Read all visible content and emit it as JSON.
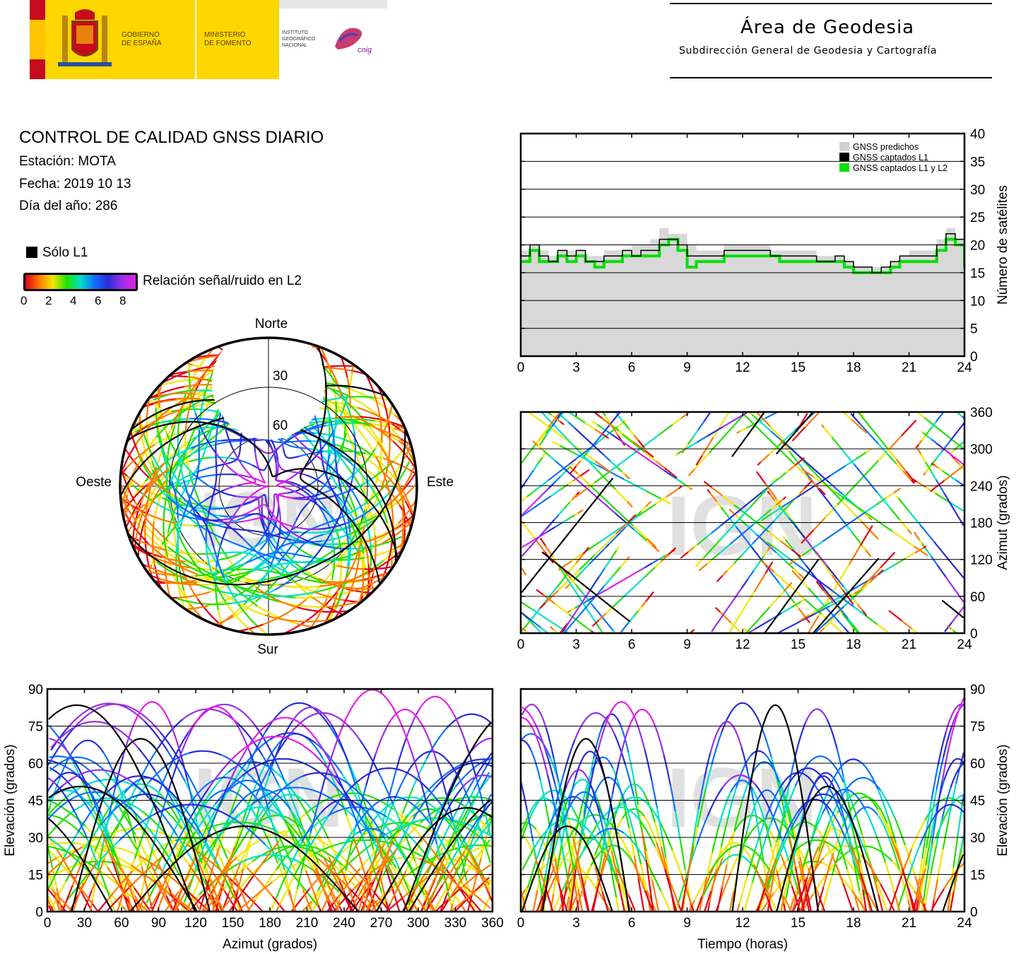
{
  "header": {
    "gov_line1": "GOBIERNO",
    "gov_line2": "DE ESPAÑA",
    "min_line1": "MINISTERIO",
    "min_line2": "DE FOMENTO",
    "ign_line1": "INSTITUTO",
    "ign_line2": "GEOGRÁFICO",
    "ign_line3": "NACIONAL",
    "cnig": "cnig",
    "area_title": "Área de Geodesia",
    "area_sub": "Subdirección General de Geodesia y Cartografía"
  },
  "info": {
    "title": "CONTROL DE CALIDAD GNSS DIARIO",
    "station": "Estación: MOTA",
    "date": "Fecha: 2019 10 13",
    "doy": "Día del año: 286"
  },
  "legend": {
    "l1_only": "Sólo L1",
    "snr_label": "Relación señal/ruido en L2",
    "snr_ticks": [
      "0",
      "2",
      "4",
      "6",
      "8"
    ],
    "colors": [
      "#000000",
      "#e0001a",
      "#ff7a00",
      "#f2e600",
      "#22e000",
      "#00e0c8",
      "#1070ff",
      "#2b2bd9",
      "#9a30e8",
      "#e620e6"
    ]
  },
  "watermark": "IGN",
  "chart_data": [
    {
      "type": "area",
      "id": "satellite-count",
      "x_ticks": [
        "0",
        "3",
        "6",
        "9",
        "12",
        "15",
        "18",
        "21",
        "24"
      ],
      "y_ticks": [
        "0",
        "5",
        "10",
        "15",
        "20",
        "25",
        "30",
        "35",
        "40"
      ],
      "xlim": [
        0,
        24
      ],
      "ylim": [
        0,
        40
      ],
      "ylabel": "Número de satélites",
      "legend_position": "top-right",
      "grid": true,
      "x": [
        0,
        0.5,
        1,
        1.5,
        2,
        2.5,
        3,
        3.5,
        4,
        4.5,
        5,
        5.5,
        6,
        6.5,
        7,
        7.5,
        8,
        8.5,
        9,
        9.5,
        10,
        10.5,
        11,
        11.5,
        12,
        12.5,
        13,
        13.5,
        14,
        14.5,
        15,
        15.5,
        16,
        16.5,
        17,
        17.5,
        18,
        18.5,
        19,
        19.5,
        20,
        20.5,
        21,
        21.5,
        22,
        22.5,
        23,
        23.5,
        24
      ],
      "series": [
        {
          "name": "GNSS predichos",
          "values": [
            19,
            20,
            19,
            18,
            19,
            19,
            19,
            18,
            18,
            19,
            19,
            19,
            20,
            20,
            21,
            23,
            22,
            22,
            20,
            19,
            19,
            19,
            20,
            20,
            20,
            20,
            20,
            19,
            19,
            19,
            19,
            19,
            18,
            18,
            18,
            17,
            16,
            16,
            16,
            16,
            17,
            18,
            19,
            19,
            19,
            21,
            23,
            21,
            18
          ]
        },
        {
          "name": "GNSS captados L1",
          "values": [
            18,
            20,
            18,
            17,
            19,
            18,
            19,
            17,
            17,
            18,
            18,
            19,
            18,
            19,
            19,
            21,
            21,
            20,
            18,
            18,
            18,
            18,
            19,
            19,
            19,
            19,
            19,
            18,
            18,
            18,
            18,
            18,
            17,
            17,
            18,
            17,
            16,
            16,
            15,
            16,
            17,
            18,
            18,
            18,
            18,
            20,
            22,
            21,
            17
          ]
        },
        {
          "name": "GNSS captados L1 y L2",
          "values": [
            17,
            19,
            17,
            17,
            18,
            17,
            18,
            17,
            16,
            17,
            17,
            18,
            18,
            18,
            18,
            20,
            21,
            19,
            16,
            17,
            17,
            17,
            18,
            18,
            18,
            18,
            18,
            18,
            17,
            17,
            17,
            17,
            17,
            17,
            17,
            16,
            15,
            15,
            15,
            15,
            16,
            17,
            17,
            17,
            17,
            19,
            21,
            20,
            16
          ]
        }
      ]
    },
    {
      "type": "scatter",
      "id": "skyplot",
      "labels": {
        "north": "Norte",
        "south": "Sur",
        "east": "Este",
        "west": "Oeste"
      },
      "rings": [
        "30",
        "60"
      ],
      "description_values": "satellite tracks in polar elevation/azimuth, colored by L2 SNR"
    },
    {
      "type": "scatter",
      "id": "azimuth-vs-time",
      "x_ticks": [
        "0",
        "3",
        "6",
        "9",
        "12",
        "15",
        "18",
        "21",
        "24"
      ],
      "y_ticks": [
        "0",
        "60",
        "120",
        "180",
        "240",
        "300",
        "360"
      ],
      "xlim": [
        0,
        24
      ],
      "ylim": [
        0,
        360
      ],
      "ylabel": "Azimut (grados)"
    },
    {
      "type": "scatter",
      "id": "elevation-vs-azimuth",
      "x_ticks": [
        "0",
        "30",
        "60",
        "90",
        "120",
        "150",
        "180",
        "210",
        "240",
        "270",
        "300",
        "330",
        "360"
      ],
      "y_ticks": [
        "0",
        "15",
        "30",
        "45",
        "60",
        "75",
        "90"
      ],
      "xlim": [
        0,
        360
      ],
      "ylim": [
        0,
        90
      ],
      "xlabel": "Azimut (grados)",
      "ylabel": "Elevación (grados)"
    },
    {
      "type": "scatter",
      "id": "elevation-vs-time",
      "x_ticks": [
        "0",
        "3",
        "6",
        "9",
        "12",
        "15",
        "18",
        "21",
        "24"
      ],
      "y_ticks": [
        "0",
        "15",
        "30",
        "45",
        "60",
        "75",
        "90"
      ],
      "xlim": [
        0,
        24
      ],
      "ylim": [
        0,
        90
      ],
      "xlabel": "Tiempo (horas)",
      "ylabel": "Elevación (grados)"
    }
  ]
}
